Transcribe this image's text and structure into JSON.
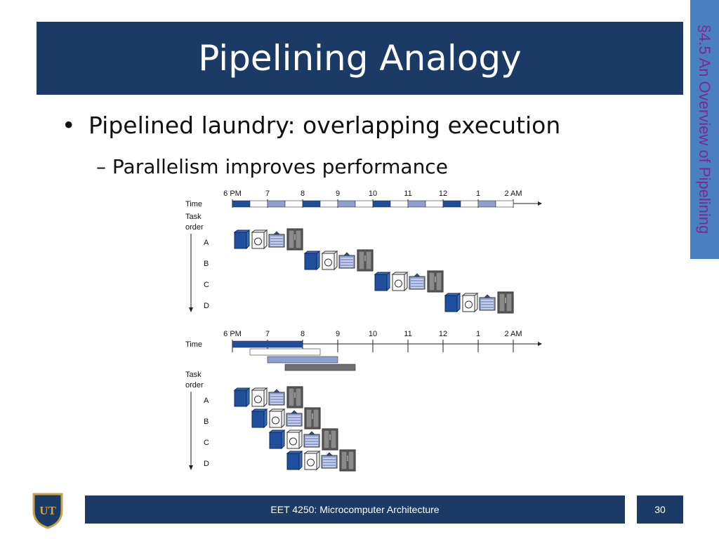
{
  "slide": {
    "title": "Pipelining Analogy",
    "section_tab": "§4.5 An Overview of Pipelining",
    "bullets": [
      {
        "text": "Pipelined laundry: overlapping execution",
        "marker": "•"
      },
      {
        "text": "Parallelism improves performance",
        "marker": "–"
      }
    ]
  },
  "footer": {
    "course": "EET 4250: Microcomputer Architecture",
    "page_number": "30",
    "logo_text": "UT"
  },
  "colors": {
    "title_bar": "#1b3a66",
    "side_tab": "#4a7fc1",
    "side_text": "#7b2b8f",
    "wash": "#1f4e9c",
    "dry": "#8fa0d0",
    "fold": "#9aa0aa",
    "store": "#6e6e6e"
  },
  "chart_data": [
    {
      "type": "gantt",
      "name": "sequential-laundry",
      "time_label": "Time",
      "time_ticks": [
        "6 PM",
        "7",
        "8",
        "9",
        "10",
        "11",
        "12",
        "1",
        "2 AM"
      ],
      "task_axis_label": "Task order",
      "tasks": [
        {
          "label": "A",
          "start_hour": 0
        },
        {
          "label": "B",
          "start_hour": 2
        },
        {
          "label": "C",
          "start_hour": 4
        },
        {
          "label": "D",
          "start_hour": 6
        }
      ],
      "stage_duration_hours": 0.5,
      "stages": [
        "wash",
        "dry",
        "fold",
        "store"
      ],
      "timeline_segments": [
        {
          "start": 0.0,
          "end": 0.5,
          "stage": "wash"
        },
        {
          "start": 0.5,
          "end": 1.0,
          "stage": "white"
        },
        {
          "start": 1.0,
          "end": 1.5,
          "stage": "dry"
        },
        {
          "start": 1.5,
          "end": 2.0,
          "stage": "white"
        },
        {
          "start": 2.0,
          "end": 2.5,
          "stage": "wash"
        },
        {
          "start": 2.5,
          "end": 3.0,
          "stage": "white"
        },
        {
          "start": 3.0,
          "end": 3.5,
          "stage": "dry"
        },
        {
          "start": 3.5,
          "end": 4.0,
          "stage": "white"
        },
        {
          "start": 4.0,
          "end": 4.5,
          "stage": "wash"
        },
        {
          "start": 4.5,
          "end": 5.0,
          "stage": "white"
        },
        {
          "start": 5.0,
          "end": 5.5,
          "stage": "dry"
        },
        {
          "start": 5.5,
          "end": 6.0,
          "stage": "white"
        },
        {
          "start": 6.0,
          "end": 6.5,
          "stage": "wash"
        },
        {
          "start": 6.5,
          "end": 7.0,
          "stage": "white"
        },
        {
          "start": 7.0,
          "end": 7.5,
          "stage": "dry"
        },
        {
          "start": 7.5,
          "end": 8.0,
          "stage": "white"
        }
      ]
    },
    {
      "type": "gantt",
      "name": "pipelined-laundry",
      "time_label": "Time",
      "time_ticks": [
        "6 PM",
        "7",
        "8",
        "9",
        "10",
        "11",
        "12",
        "1",
        "2 AM"
      ],
      "task_axis_label": "Task order",
      "tasks": [
        {
          "label": "A",
          "start_hour": 0
        },
        {
          "label": "B",
          "start_hour": 0.5
        },
        {
          "label": "C",
          "start_hour": 1
        },
        {
          "label": "D",
          "start_hour": 1.5
        }
      ],
      "stage_duration_hours": 0.5,
      "stages": [
        "wash",
        "dry",
        "fold",
        "store"
      ],
      "timeline_rows": [
        {
          "segments": [
            {
              "start": 0.0,
              "end": 2.0,
              "stage": "wash"
            }
          ]
        },
        {
          "segments": [
            {
              "start": 0.5,
              "end": 2.5,
              "stage": "white"
            }
          ]
        },
        {
          "segments": [
            {
              "start": 1.0,
              "end": 3.0,
              "stage": "dry"
            }
          ]
        },
        {
          "segments": [
            {
              "start": 1.5,
              "end": 3.5,
              "stage": "store"
            }
          ]
        }
      ]
    }
  ]
}
